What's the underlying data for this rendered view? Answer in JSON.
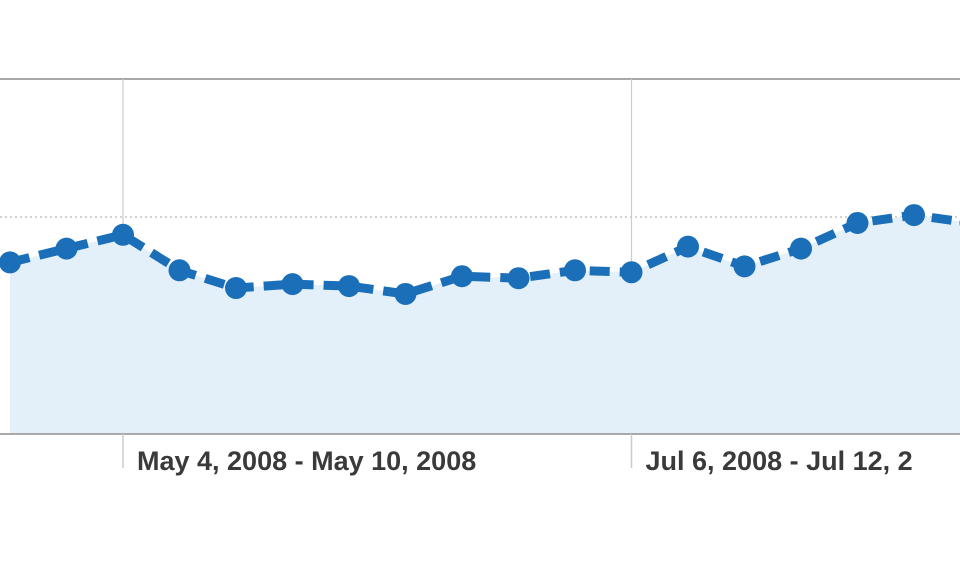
{
  "chart_data": {
    "type": "area",
    "x_tick_labels": [
      "May 4, 2008 - May 10, 2008",
      "Jul 6, 2008 - Jul 12, 2"
    ],
    "series": [
      {
        "values": [
          0.27,
          0.34,
          0.41,
          0.23,
          0.14,
          0.16,
          0.15,
          0.11,
          0.2,
          0.19,
          0.23,
          0.22,
          0.35,
          0.25,
          0.34,
          0.47,
          0.51,
          0.47
        ]
      }
    ],
    "ylim": [
      -0.6,
      1.2
    ],
    "reference_line": 0.5,
    "grid": true,
    "colors": {
      "line": "#1a6fb8",
      "area": "#e3f0fa",
      "axis": "#a9a9a9",
      "gridline": "#cccccc",
      "tick_text": "#3a3a3a"
    }
  }
}
